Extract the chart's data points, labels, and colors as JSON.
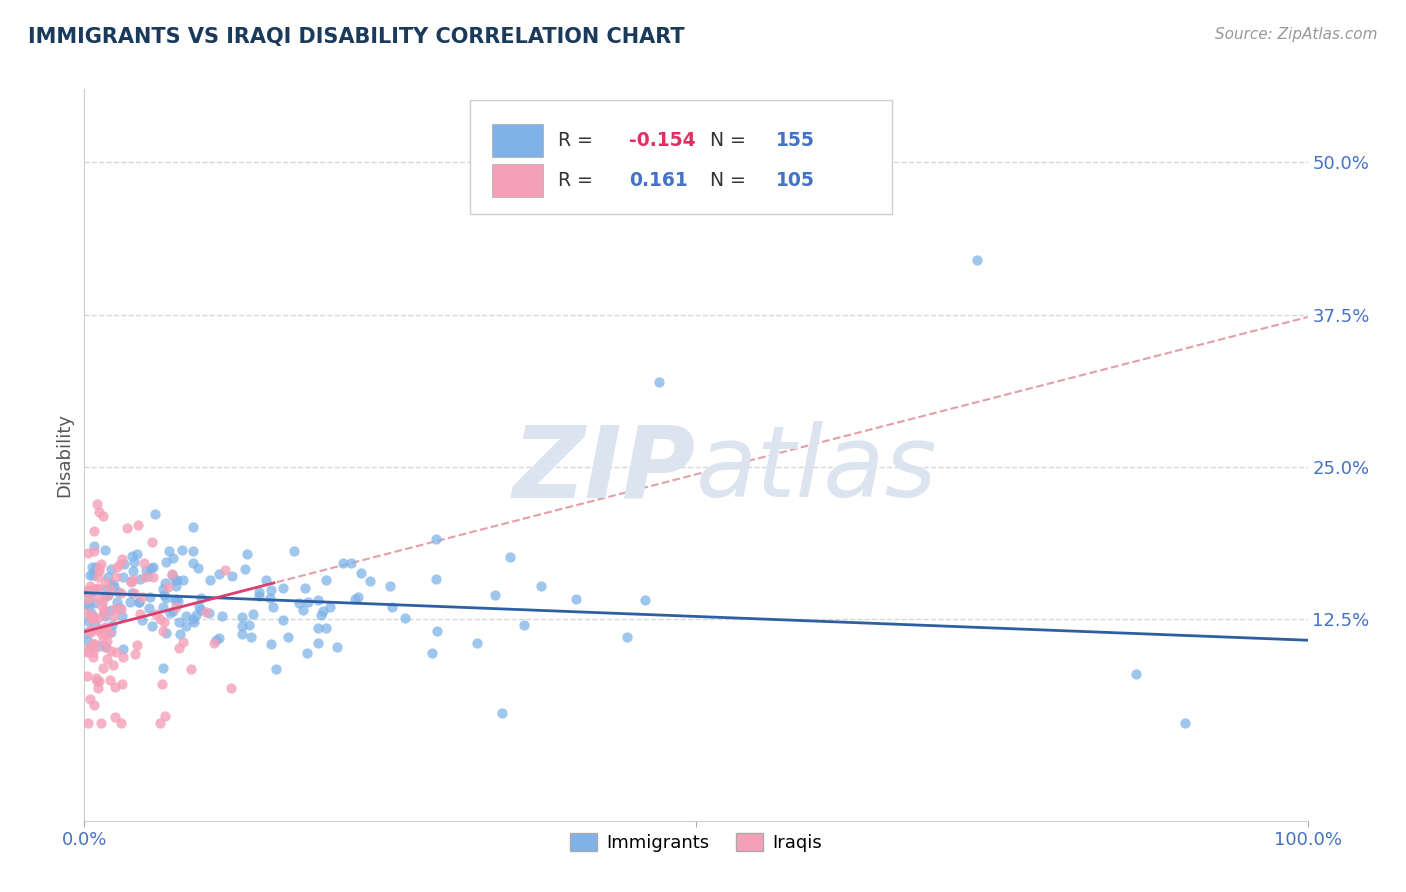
{
  "title": "IMMIGRANTS VS IRAQI DISABILITY CORRELATION CHART",
  "source": "Source: ZipAtlas.com",
  "ylabel": "Disability",
  "xlim": [
    0,
    1
  ],
  "ylim": [
    -0.04,
    0.56
  ],
  "yticks": [
    0.125,
    0.25,
    0.375,
    0.5
  ],
  "ytick_labels": [
    "12.5%",
    "25.0%",
    "37.5%",
    "50.0%"
  ],
  "grid_color": "#cccccc",
  "background_color": "#ffffff",
  "blue_color": "#7fb3e8",
  "pink_color": "#f4a0b8",
  "blue_line_color": "#2e5fa3",
  "pink_line_color": "#d94070",
  "pink_dash_color": "#d06070",
  "watermark_color": "#dce4f0",
  "R_blue": -0.154,
  "N_blue": 155,
  "R_pink": 0.161,
  "N_pink": 105,
  "title_color": "#1a3a5c",
  "tick_label_color": "#4472c4",
  "ylabel_color": "#555555",
  "legend_R_color": "#e03060",
  "legend_N_color": "#4472c4"
}
